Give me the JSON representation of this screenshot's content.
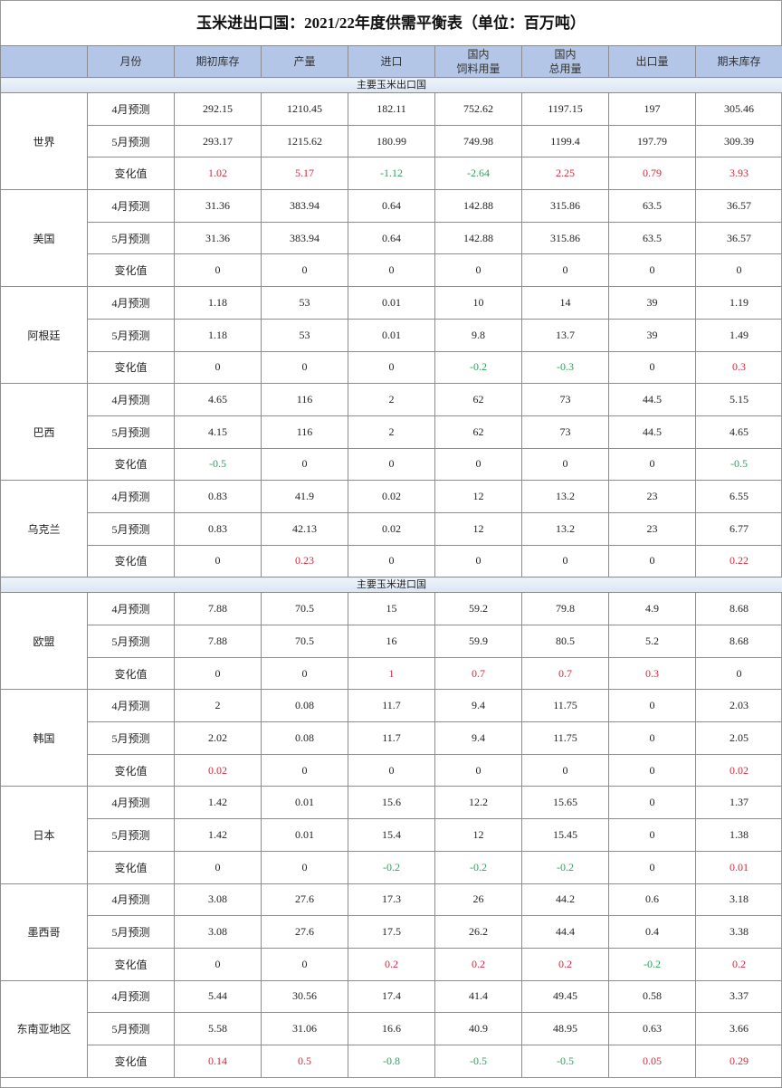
{
  "title": "玉米进出口国：2021/22年度供需平衡表（单位：百万吨）",
  "headers": [
    "",
    "月份",
    "期初库存",
    "产量",
    "进口",
    "国内\n饲料用量",
    "国内\n总用量",
    "出口量",
    "期末库存"
  ],
  "colors": {
    "header_bg": "#b4c6e7",
    "positive": "#d9263b",
    "negative": "#2e9e5e"
  },
  "sections": [
    {
      "label": "主要玉米出口国",
      "countries": [
        {
          "name": "世界",
          "rows": [
            {
              "label": "4月预测",
              "values": [
                "292.15",
                "1210.45",
                "182.11",
                "752.62",
                "1197.15",
                "197",
                "305.46"
              ]
            },
            {
              "label": "5月预测",
              "values": [
                "293.17",
                "1215.62",
                "180.99",
                "749.98",
                "1199.4",
                "197.79",
                "309.39"
              ]
            },
            {
              "label": "变化值",
              "values": [
                "1.02",
                "5.17",
                "-1.12",
                "-2.64",
                "2.25",
                "0.79",
                "3.93"
              ]
            }
          ]
        },
        {
          "name": "美国",
          "rows": [
            {
              "label": "4月预测",
              "values": [
                "31.36",
                "383.94",
                "0.64",
                "142.88",
                "315.86",
                "63.5",
                "36.57"
              ]
            },
            {
              "label": "5月预测",
              "values": [
                "31.36",
                "383.94",
                "0.64",
                "142.88",
                "315.86",
                "63.5",
                "36.57"
              ]
            },
            {
              "label": "变化值",
              "values": [
                "0",
                "0",
                "0",
                "0",
                "0",
                "0",
                "0"
              ]
            }
          ]
        },
        {
          "name": "阿根廷",
          "rows": [
            {
              "label": "4月预测",
              "values": [
                "1.18",
                "53",
                "0.01",
                "10",
                "14",
                "39",
                "1.19"
              ]
            },
            {
              "label": "5月预测",
              "values": [
                "1.18",
                "53",
                "0.01",
                "9.8",
                "13.7",
                "39",
                "1.49"
              ]
            },
            {
              "label": "变化值",
              "values": [
                "0",
                "0",
                "0",
                "-0.2",
                "-0.3",
                "0",
                "0.3"
              ]
            }
          ]
        },
        {
          "name": "巴西",
          "rows": [
            {
              "label": "4月预测",
              "values": [
                "4.65",
                "116",
                "2",
                "62",
                "73",
                "44.5",
                "5.15"
              ]
            },
            {
              "label": "5月预测",
              "values": [
                "4.15",
                "116",
                "2",
                "62",
                "73",
                "44.5",
                "4.65"
              ]
            },
            {
              "label": "变化值",
              "values": [
                "-0.5",
                "0",
                "0",
                "0",
                "0",
                "0",
                "-0.5"
              ]
            }
          ]
        },
        {
          "name": "乌克兰",
          "rows": [
            {
              "label": "4月预测",
              "values": [
                "0.83",
                "41.9",
                "0.02",
                "12",
                "13.2",
                "23",
                "6.55"
              ]
            },
            {
              "label": "5月预测",
              "values": [
                "0.83",
                "42.13",
                "0.02",
                "12",
                "13.2",
                "23",
                "6.77"
              ]
            },
            {
              "label": "变化值",
              "values": [
                "0",
                "0.23",
                "0",
                "0",
                "0",
                "0",
                "0.22"
              ]
            }
          ]
        }
      ]
    },
    {
      "label": "主要玉米进口国",
      "countries": [
        {
          "name": "欧盟",
          "rows": [
            {
              "label": "4月预测",
              "values": [
                "7.88",
                "70.5",
                "15",
                "59.2",
                "79.8",
                "4.9",
                "8.68"
              ]
            },
            {
              "label": "5月预测",
              "values": [
                "7.88",
                "70.5",
                "16",
                "59.9",
                "80.5",
                "5.2",
                "8.68"
              ]
            },
            {
              "label": "变化值",
              "values": [
                "0",
                "0",
                "1",
                "0.7",
                "0.7",
                "0.3",
                "0"
              ]
            }
          ]
        },
        {
          "name": "韩国",
          "rows": [
            {
              "label": "4月预测",
              "values": [
                "2",
                "0.08",
                "11.7",
                "9.4",
                "11.75",
                "0",
                "2.03"
              ]
            },
            {
              "label": "5月预测",
              "values": [
                "2.02",
                "0.08",
                "11.7",
                "9.4",
                "11.75",
                "0",
                "2.05"
              ]
            },
            {
              "label": "变化值",
              "values": [
                "0.02",
                "0",
                "0",
                "0",
                "0",
                "0",
                "0.02"
              ]
            }
          ]
        },
        {
          "name": "日本",
          "rows": [
            {
              "label": "4月预测",
              "values": [
                "1.42",
                "0.01",
                "15.6",
                "12.2",
                "15.65",
                "0",
                "1.37"
              ]
            },
            {
              "label": "5月预测",
              "values": [
                "1.42",
                "0.01",
                "15.4",
                "12",
                "15.45",
                "0",
                "1.38"
              ]
            },
            {
              "label": "变化值",
              "values": [
                "0",
                "0",
                "-0.2",
                "-0.2",
                "-0.2",
                "0",
                "0.01"
              ]
            }
          ]
        },
        {
          "name": "墨西哥",
          "rows": [
            {
              "label": "4月预测",
              "values": [
                "3.08",
                "27.6",
                "17.3",
                "26",
                "44.2",
                "0.6",
                "3.18"
              ]
            },
            {
              "label": "5月预测",
              "values": [
                "3.08",
                "27.6",
                "17.5",
                "26.2",
                "44.4",
                "0.4",
                "3.38"
              ]
            },
            {
              "label": "变化值",
              "values": [
                "0",
                "0",
                "0.2",
                "0.2",
                "0.2",
                "-0.2",
                "0.2"
              ]
            }
          ]
        },
        {
          "name": "东南亚地区",
          "rows": [
            {
              "label": "4月预测",
              "values": [
                "5.44",
                "30.56",
                "17.4",
                "41.4",
                "49.45",
                "0.58",
                "3.37"
              ]
            },
            {
              "label": "5月预测",
              "values": [
                "5.58",
                "31.06",
                "16.6",
                "40.9",
                "48.95",
                "0.63",
                "3.66"
              ]
            },
            {
              "label": "变化值",
              "values": [
                "0.14",
                "0.5",
                "-0.8",
                "-0.5",
                "-0.5",
                "0.05",
                "0.29"
              ]
            }
          ]
        }
      ]
    }
  ]
}
